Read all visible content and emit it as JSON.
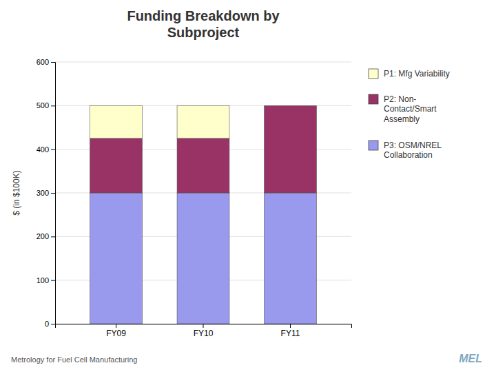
{
  "chart_data": {
    "type": "bar",
    "stacked": true,
    "grid": true,
    "title": "Funding Breakdown by\nSubproject",
    "categories": [
      "FY09",
      "FY10",
      "FY11"
    ],
    "series": [
      {
        "name": "P3: OSM/NREL\nCollaboration",
        "color": "#9999ee",
        "values": [
          300,
          300,
          300
        ]
      },
      {
        "name": "P2: Non-\nContact/Smart\nAssembly",
        "color": "#993366",
        "values": [
          125,
          125,
          200
        ]
      },
      {
        "name": "P1: Mfg Variability",
        "color": "#ffffcc",
        "values": [
          75,
          75,
          0
        ]
      }
    ],
    "ylabel": "$ (in $100K)",
    "ylim": [
      0,
      600
    ],
    "yticks": [
      0,
      100,
      200,
      300,
      400,
      500,
      600
    ],
    "annotations": [
      "Metrology for Fuel Cell Manufacturing",
      "MEL"
    ]
  }
}
